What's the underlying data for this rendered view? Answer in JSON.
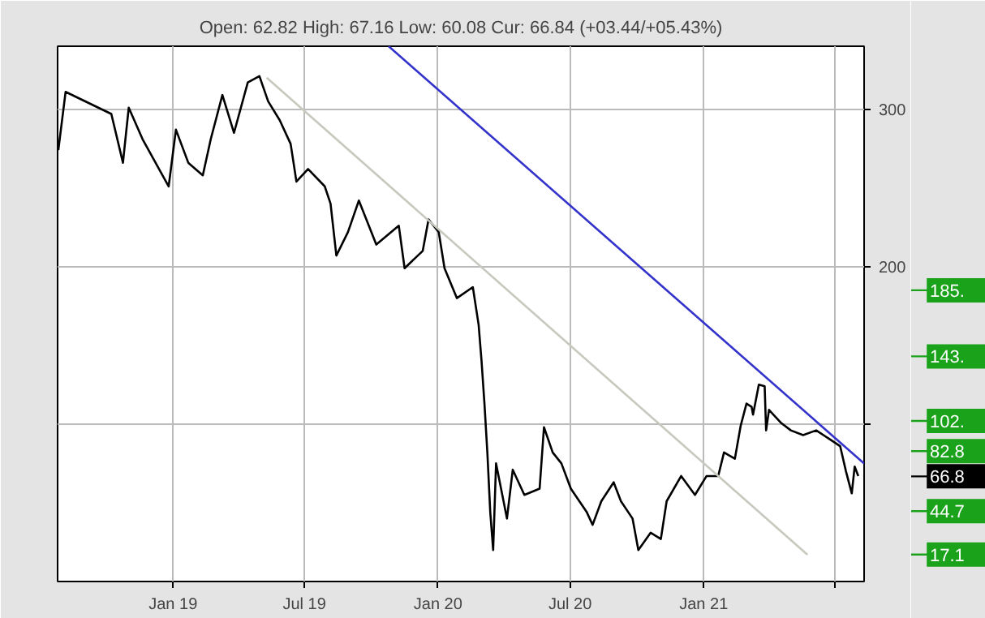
{
  "chart_data": {
    "type": "line",
    "subtitle": "Open: 62.82 High: 67.16 Low: 60.08 Cur: 66.84 (+03.44/+05.43%)",
    "xlim": [
      "2018-07-26",
      "2021-08-10"
    ],
    "xticks": [
      {
        "value": "2019-01-01",
        "label": "Jan 19"
      },
      {
        "value": "2019-07-01",
        "label": "Jul 19"
      },
      {
        "value": "2020-01-01",
        "label": "Jan 20"
      },
      {
        "value": "2020-07-01",
        "label": "Jul 20"
      },
      {
        "value": "2021-01-01",
        "label": "Jan 21"
      },
      {
        "value": "2021-07-01",
        "label": null
      }
    ],
    "ylim": [
      0,
      340
    ],
    "yticks": [
      {
        "value": 100,
        "label": null
      },
      200,
      300
    ],
    "grid": true,
    "series": [
      {
        "color": "#000000",
        "x": [
          "2018-07-27",
          "2018-08-06",
          "2018-10-08",
          "2018-10-24",
          "2018-11-01",
          "2018-11-20",
          "2018-12-26",
          "2019-01-05",
          "2019-01-22",
          "2019-02-11",
          "2019-02-22",
          "2019-03-10",
          "2019-03-26",
          "2019-04-14",
          "2019-04-30",
          "2019-05-12",
          "2019-05-28",
          "2019-06-12",
          "2019-06-16",
          "2019-06-20",
          "2019-07-06",
          "2019-07-29",
          "2019-08-06",
          "2019-08-14",
          "2019-08-30",
          "2019-09-14",
          "2019-10-08",
          "2019-11-08",
          "2019-11-16",
          "2019-12-11",
          "2019-12-19",
          "2020-01-02",
          "2020-01-10",
          "2020-01-27",
          "2020-02-18",
          "2020-02-26",
          "2020-03-01",
          "2020-03-05",
          "2020-03-09",
          "2020-03-13",
          "2020-03-17",
          "2020-03-21",
          "2020-04-05",
          "2020-04-13",
          "2020-04-29",
          "2020-05-20",
          "2020-05-26",
          "2020-06-07",
          "2020-06-19",
          "2020-07-02",
          "2020-07-24",
          "2020-08-01",
          "2020-08-13",
          "2020-08-30",
          "2020-09-09",
          "2020-09-25",
          "2020-10-03",
          "2020-10-20",
          "2020-11-03",
          "2020-11-11",
          "2020-12-01",
          "2020-12-20",
          "2021-01-05",
          "2021-01-21",
          "2021-01-29",
          "2021-02-13",
          "2021-02-21",
          "2021-03-01",
          "2021-03-08",
          "2021-03-10",
          "2021-03-18",
          "2021-03-26",
          "2021-03-28",
          "2021-04-01",
          "2021-04-17",
          "2021-05-01",
          "2021-05-18",
          "2021-06-05",
          "2021-06-25",
          "2021-07-08",
          "2021-07-16",
          "2021-07-24",
          "2021-07-28",
          "2021-08-02"
        ],
        "values": [
          274,
          311,
          297,
          266,
          301,
          281,
          251,
          287,
          266,
          258,
          281,
          309,
          285,
          317,
          321,
          305,
          293,
          278,
          266,
          254,
          262,
          251,
          240,
          207,
          222,
          242,
          214,
          226,
          199,
          210,
          230,
          222,
          199,
          180,
          187,
          163,
          140,
          113,
          82,
          44,
          20,
          75,
          40,
          71,
          55,
          59,
          98,
          82,
          75,
          59,
          44,
          36,
          51,
          63,
          51,
          40,
          20,
          31,
          27,
          51,
          67,
          55,
          67,
          67,
          82,
          78,
          99,
          113,
          111,
          106,
          125,
          124,
          96,
          109,
          101,
          96,
          93,
          96,
          90,
          86,
          70,
          56,
          73,
          67
        ]
      },
      {
        "color": "#c8c8be",
        "x": [
          "2019-05-10",
          "2021-05-24"
        ],
        "values": [
          320,
          17
        ]
      },
      {
        "color": "#3333cc",
        "x": [
          "2019-10-25",
          "2021-08-10"
        ],
        "values": [
          340,
          75
        ]
      }
    ],
    "ref_lines": [
      {
        "axis": "y",
        "value": 185,
        "label": "185.",
        "color": "#1aa31a"
      },
      {
        "axis": "y",
        "value": 143,
        "label": "143.",
        "color": "#1aa31a"
      },
      {
        "axis": "y",
        "value": 102,
        "label": "102.",
        "color": "#1aa31a"
      },
      {
        "axis": "y",
        "value": 82.8,
        "label": "82.8",
        "color": "#1aa31a"
      },
      {
        "axis": "y",
        "value": 66.8,
        "label": "66.8",
        "color": "#000000"
      },
      {
        "axis": "y",
        "value": 44.7,
        "label": "44.7",
        "color": "#1aa31a"
      },
      {
        "axis": "y",
        "value": 17.1,
        "label": "17.1",
        "color": "#1aa31a"
      }
    ]
  }
}
